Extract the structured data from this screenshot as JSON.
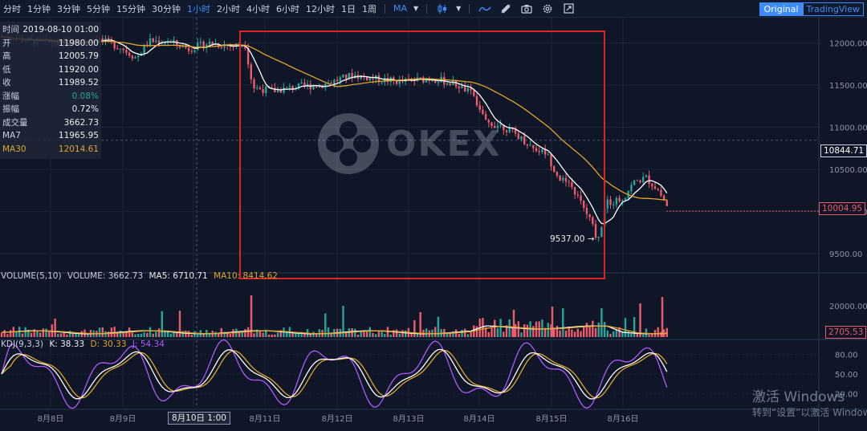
{
  "toolbar": {
    "timeframes": [
      "分时",
      "1分钟",
      "3分钟",
      "5分钟",
      "15分钟",
      "30分钟",
      "1小时",
      "2小时",
      "4小时",
      "6小时",
      "12小时",
      "1日",
      "1周"
    ],
    "active_timeframe": "1小时",
    "indicator_label": "MA",
    "view_original": "Original",
    "view_tradingview": "TradingView",
    "icons": [
      "candle-type-icon",
      "chart-line-icon",
      "drawing-tool-icon",
      "camera-icon",
      "settings-icon",
      "fullscreen-icon"
    ]
  },
  "info": {
    "time_k": "时间",
    "time_v": "2019-08-10 01:00",
    "open_k": "开",
    "open_v": "11980.00",
    "high_k": "高",
    "high_v": "12005.79",
    "low_k": "低",
    "low_v": "11920.00",
    "close_k": "收",
    "close_v": "11989.52",
    "chg_k": "涨幅",
    "chg_v": "0.08%",
    "amp_k": "振幅",
    "amp_v": "0.72%",
    "vol_k": "成交量",
    "vol_v": "3662.73",
    "ma7_k": "MA7",
    "ma7_v": "11965.95",
    "ma30_k": "MA30",
    "ma30_v": "12014.61",
    "partial_hidden": "12"
  },
  "price_axis": {
    "ticks": [
      "12000.00",
      "11500.00",
      "11000.00",
      "10500.00",
      "10000.00",
      "9500.00"
    ],
    "crosshair_label": "10844.71",
    "last_price_label": "10004.95",
    "low_marker": "9537.00 →"
  },
  "volume_panel": {
    "title": "VOLUME(5,10)",
    "vol_text": "VOLUME: 3662.73",
    "ma5_text": "MA5: 6710.71",
    "ma10_text": "MA10: 8414.62",
    "tick": "20000.00",
    "last_label": "2705.53"
  },
  "kdj_panel": {
    "title": "KDJ(9,3,3)",
    "k_text": "K: 38.33",
    "d_text": "D: 30.33",
    "j_text": "J: 54.34",
    "ticks": [
      "80.00",
      "50.00",
      "20.00"
    ]
  },
  "x_axis": {
    "dates": [
      "8月8日",
      "8月9日",
      "8月11日",
      "8月12日",
      "8月13日",
      "8月14日",
      "8月15日",
      "8月16日"
    ],
    "highlight": "8月10日 1:00"
  },
  "watermark": "OKEX",
  "windows": {
    "title": "激活 Windows",
    "sub": "转到“设置”以激活 Windows"
  },
  "colors": {
    "up": "#ef5b6a",
    "down": "#26a69a",
    "ma7": "#ffffff",
    "ma30": "#e0a526",
    "j": "#b157ff",
    "accent": "#3d8cff",
    "annot": "#e02424"
  },
  "chart_data": {
    "type": "line",
    "title": "",
    "x": [
      "8月8日",
      "8月9日",
      "8月10日",
      "8月11日",
      "8月12日",
      "8月13日",
      "8月14日",
      "8月15日",
      "8月16日"
    ],
    "series": [
      {
        "name": "MA7",
        "values": [
          11980,
          11850,
          11940,
          11480,
          11560,
          11570,
          11150,
          10600,
          10150
        ]
      },
      {
        "name": "MA30",
        "values": [
          11960,
          11930,
          11990,
          11700,
          11530,
          11560,
          11300,
          10900,
          10180
        ]
      }
    ],
    "ylim": [
      9300,
      12300
    ],
    "low_point": 9537.0,
    "last_price": 10004.95,
    "crosshair_price": 10844.71
  }
}
